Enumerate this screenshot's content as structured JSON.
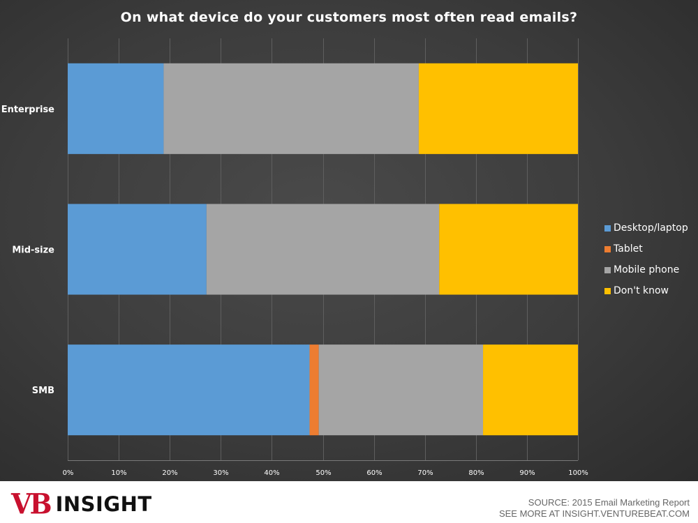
{
  "chart_data": {
    "type": "bar",
    "orientation": "horizontal",
    "stacked": "percent",
    "title": "On what device do your customers most often read emails?",
    "categories": [
      "Enterprise",
      "Mid-size",
      "SMB"
    ],
    "series": [
      {
        "name": "Desktop/laptop",
        "color": "#5b9bd5",
        "values": [
          18.8,
          27.2,
          47.4
        ]
      },
      {
        "name": "Tablet",
        "color": "#ed7d31",
        "values": [
          0,
          0,
          1.8
        ]
      },
      {
        "name": "Mobile phone",
        "color": "#a5a5a5",
        "values": [
          50.0,
          45.6,
          32.2
        ]
      },
      {
        "name": "Don't know",
        "color": "#ffc000",
        "values": [
          31.2,
          27.2,
          18.6
        ]
      }
    ],
    "xlim": [
      0,
      100
    ],
    "xticks": [
      "0%",
      "10%",
      "20%",
      "30%",
      "40%",
      "50%",
      "60%",
      "70%",
      "80%",
      "90%",
      "100%"
    ],
    "grid": true,
    "legend_position": "right"
  },
  "branding": {
    "logo_vb": "VB",
    "logo_insight": "INSIGHT"
  },
  "source": {
    "line1": "SOURCE: 2015 Email Marketing Report",
    "line2": "SEE MORE AT INSIGHT.VENTUREBEAT.COM"
  }
}
